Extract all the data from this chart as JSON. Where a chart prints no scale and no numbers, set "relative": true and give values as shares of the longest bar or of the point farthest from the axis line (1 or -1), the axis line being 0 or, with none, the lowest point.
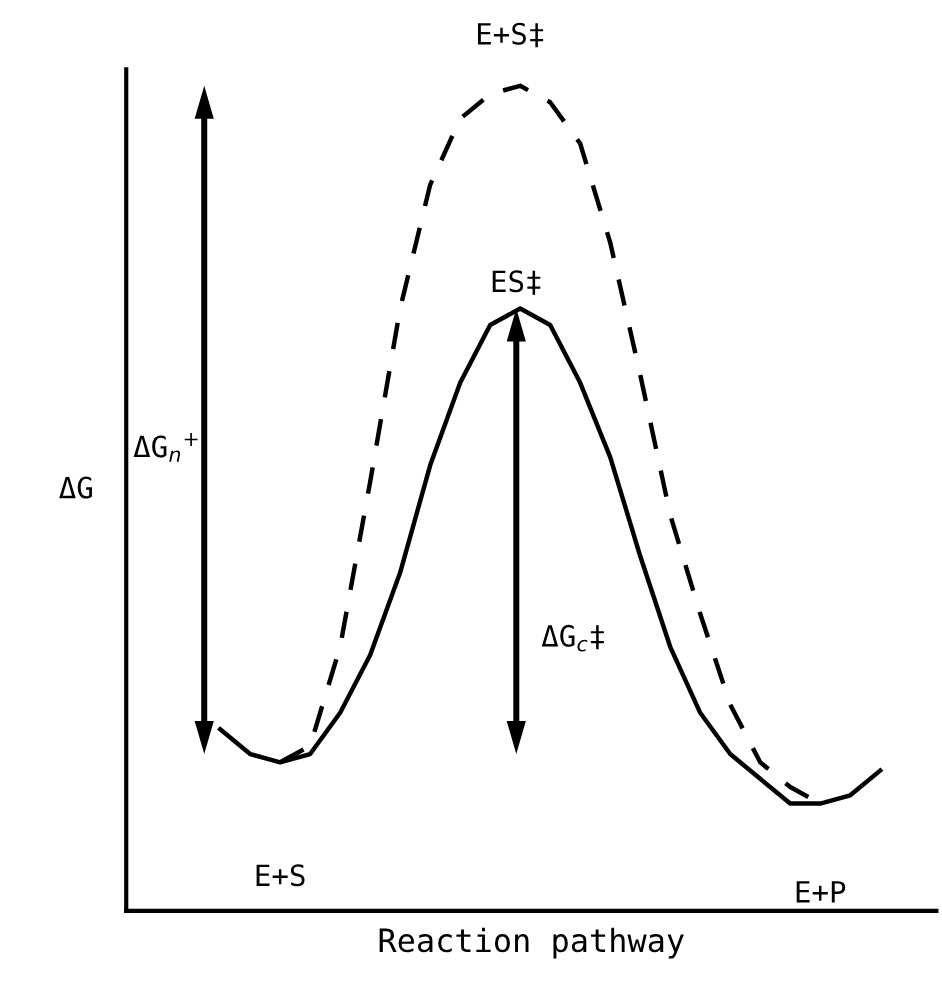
{
  "chart_data": {
    "type": "line",
    "relative": true,
    "xlabel": "Reaction pathway",
    "ylabel": "ΔG",
    "categories": [
      null,
      null,
      null,
      null,
      null,
      null,
      null,
      null,
      null,
      null,
      null,
      null,
      null,
      null,
      null,
      null,
      null,
      null,
      null,
      null,
      null,
      null,
      null
    ],
    "series": [
      {
        "color": "#000000",
        "line_style": "solid",
        "values": [
          0.22,
          0.19,
          0.18,
          0.19,
          0.24,
          0.31,
          0.41,
          0.54,
          0.64,
          0.71,
          0.73,
          0.71,
          0.64,
          0.55,
          0.43,
          0.32,
          0.24,
          0.19,
          0.16,
          0.13,
          0.13,
          0.14,
          0.17
        ]
      },
      {
        "color": "#000000",
        "line_style": "dashed",
        "values": [
          null,
          null,
          0.18,
          0.2,
          0.32,
          0.52,
          0.73,
          0.88,
          0.96,
          0.99,
          1.0,
          0.98,
          0.93,
          0.81,
          0.65,
          0.48,
          0.36,
          0.25,
          0.18,
          0.15,
          0.13,
          null,
          null
        ]
      }
    ],
    "annotations": [
      "E+S‡",
      "ES‡",
      "ΔG$_{n}$$^{+}$",
      "ΔG$_{c}$‡",
      "E+S",
      "E+P"
    ],
    "legend": false,
    "marker": "none"
  }
}
